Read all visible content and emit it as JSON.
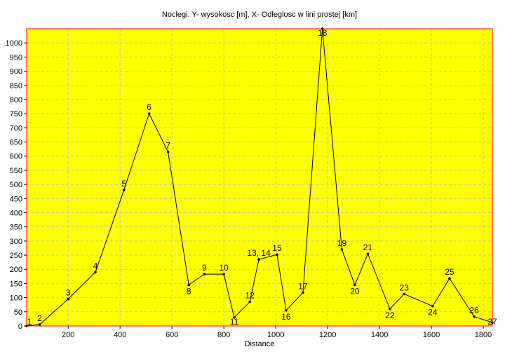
{
  "chart_data": {
    "type": "line",
    "title": "Noclegi. Y- wysokosc [m], X- Odleglosc w lini prostej [km]",
    "xlabel": "Distance",
    "ylabel": "",
    "xlim": [
      40,
      1835
    ],
    "ylim": [
      0,
      1050
    ],
    "grid": true,
    "legend": "none",
    "x_ticks": [
      200,
      400,
      600,
      800,
      1000,
      1200,
      1400,
      1600,
      1800
    ],
    "y_ticks": [
      0,
      50,
      100,
      150,
      200,
      250,
      300,
      350,
      400,
      450,
      500,
      550,
      600,
      650,
      700,
      750,
      800,
      850,
      900,
      950,
      1000
    ],
    "series": [
      {
        "points": [
          {
            "label": "1",
            "x": 40,
            "y": 0
          },
          {
            "label": "2",
            "x": 90,
            "y": 5
          },
          {
            "label": "3",
            "x": 200,
            "y": 95
          },
          {
            "label": "4",
            "x": 305,
            "y": 190
          },
          {
            "label": "5",
            "x": 415,
            "y": 480
          },
          {
            "label": "6",
            "x": 512,
            "y": 750
          },
          {
            "label": "7",
            "x": 585,
            "y": 615
          },
          {
            "label": "8",
            "x": 665,
            "y": 145
          },
          {
            "label": "9",
            "x": 725,
            "y": 183
          },
          {
            "label": "10",
            "x": 800,
            "y": 183
          },
          {
            "label": "11",
            "x": 840,
            "y": 30
          },
          {
            "label": "12",
            "x": 900,
            "y": 85
          },
          {
            "label": "13, 14",
            "x": 935,
            "y": 235
          },
          {
            "label": "15",
            "x": 1005,
            "y": 252
          },
          {
            "label": "16",
            "x": 1040,
            "y": 55
          },
          {
            "label": "17",
            "x": 1105,
            "y": 118
          },
          {
            "label": "18",
            "x": 1180,
            "y": 1060
          },
          {
            "label": "19",
            "x": 1255,
            "y": 270
          },
          {
            "label": "20",
            "x": 1305,
            "y": 145
          },
          {
            "label": "21",
            "x": 1355,
            "y": 255
          },
          {
            "label": "22",
            "x": 1440,
            "y": 60
          },
          {
            "label": "23",
            "x": 1495,
            "y": 113
          },
          {
            "label": "24",
            "x": 1605,
            "y": 70
          },
          {
            "label": "25",
            "x": 1670,
            "y": 168
          },
          {
            "label": "26",
            "x": 1765,
            "y": 33
          },
          {
            "label": "27",
            "x": 1835,
            "y": 12
          }
        ]
      }
    ],
    "colors": {
      "plot_background": "#ffff00",
      "axis_color": "#ff0000",
      "grid_color": "#c0c0c0",
      "line_color": "#000000",
      "page_background": "#ffffff"
    }
  }
}
